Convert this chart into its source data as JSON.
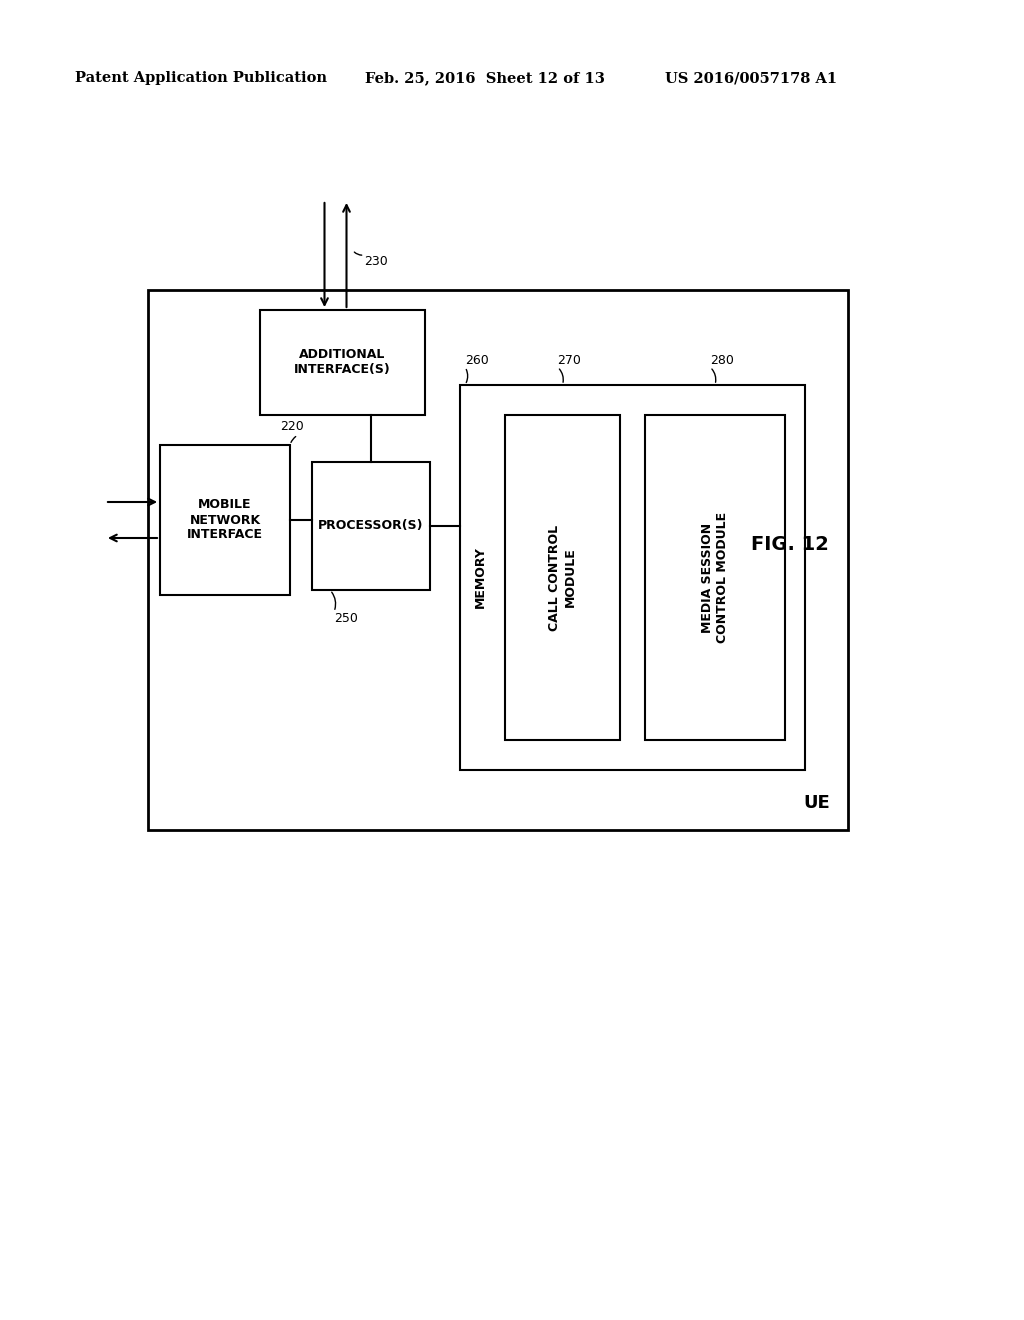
{
  "bg_color": "#ffffff",
  "header_left": "Patent Application Publication",
  "header_mid": "Feb. 25, 2016  Sheet 12 of 13",
  "header_right": "US 2016/0057178 A1",
  "fig_label": "FIG. 12",
  "ue_label": "UE",
  "labels": {
    "mobile_net": "MOBILE\nNETWORK\nINTERFACE",
    "processor": "PROCESSOR(S)",
    "additional": "ADDITIONAL\nINTERFACE(S)",
    "memory": "MEMORY",
    "call_control": "CALL CONTROL\nMODULE",
    "media_session": "MEDIA SESSION\nCONTROL MODULE"
  }
}
